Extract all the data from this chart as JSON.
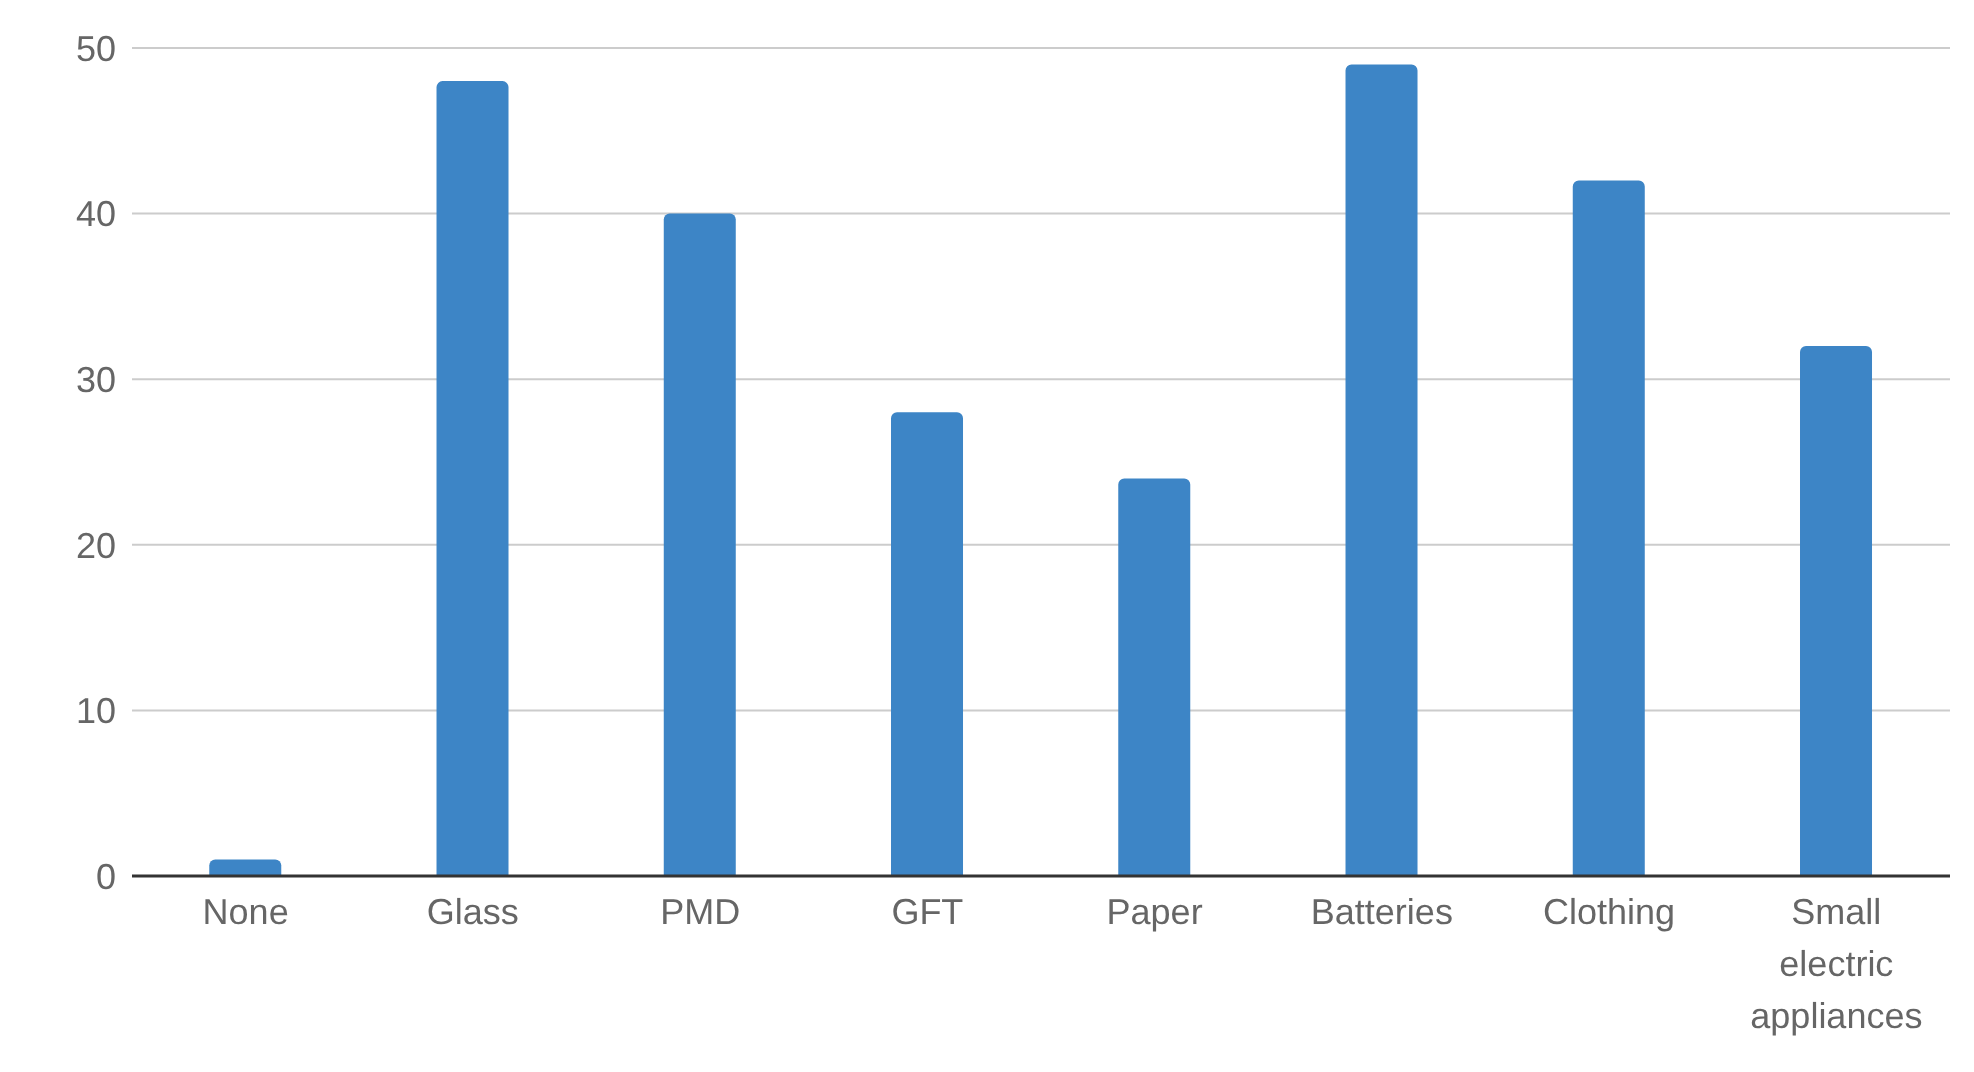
{
  "chart_data": {
    "type": "bar",
    "categories": [
      "None",
      "Glass",
      "PMD",
      "GFT",
      "Paper",
      "Batteries",
      "Clothing",
      "Small electric appliances"
    ],
    "values": [
      1,
      48,
      40,
      28,
      24,
      49,
      42,
      32
    ],
    "color": "#3d85c6",
    "ylim": [
      0,
      50
    ],
    "yticks": [
      0,
      10,
      20,
      30,
      40,
      50
    ],
    "grid": "y"
  }
}
